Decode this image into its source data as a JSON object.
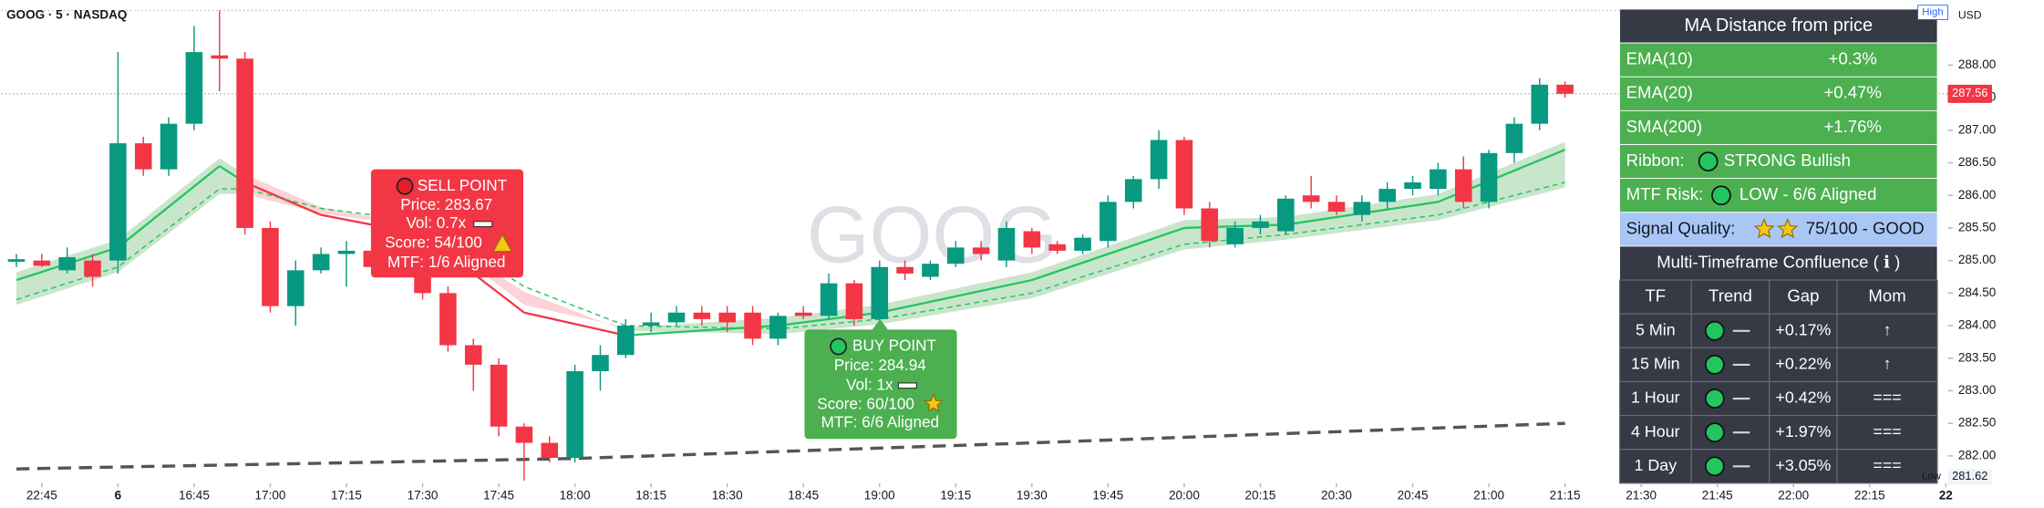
{
  "chart_data": {
    "type": "candlestick",
    "title": "GOOG · 5 · NASDAQ",
    "watermark": "GOOG",
    "currency": "USD",
    "up_color": "#089981",
    "down_color": "#f23645",
    "series": [
      {
        "open": [
          284.98,
          285.0,
          284.85,
          285.0,
          285.0,
          286.8,
          286.4,
          287.1,
          288.15,
          288.1,
          285.5,
          284.3,
          284.85,
          285.1,
          285.15,
          284.9,
          285.0,
          284.5,
          283.7,
          283.4,
          282.45,
          282.2,
          281.97,
          283.3,
          283.55,
          284.0,
          284.05,
          284.2,
          284.2,
          284.2,
          283.8,
          284.2,
          284.15,
          284.65,
          284.1,
          284.9,
          284.75,
          284.95,
          285.2,
          285.0,
          285.45,
          285.25,
          285.15,
          285.3,
          285.9,
          286.25,
          286.85,
          285.8,
          285.25,
          285.5,
          285.45,
          286.0,
          285.9,
          285.7,
          285.9,
          286.1,
          286.1,
          286.4,
          285.9,
          286.65,
          287.1,
          287.7
        ],
        "high": [
          285.1,
          285.1,
          285.2,
          285.1,
          288.2,
          286.9,
          287.2,
          288.6,
          288.84,
          288.2,
          285.6,
          285.0,
          285.2,
          285.3,
          285.3,
          285.1,
          285.1,
          284.6,
          283.8,
          283.5,
          282.5,
          282.3,
          283.4,
          283.7,
          284.1,
          284.2,
          284.3,
          284.3,
          284.3,
          284.3,
          284.2,
          284.3,
          284.8,
          284.7,
          285.0,
          285.0,
          285.0,
          285.3,
          285.3,
          285.6,
          285.5,
          285.3,
          285.4,
          286.0,
          286.3,
          287.0,
          286.9,
          285.9,
          285.6,
          285.7,
          286.0,
          286.3,
          286.0,
          286.0,
          286.2,
          286.3,
          286.5,
          286.6,
          286.7,
          287.2,
          287.8,
          287.75
        ],
        "low": [
          284.9,
          284.9,
          284.8,
          284.6,
          284.8,
          286.3,
          286.3,
          287.0,
          287.6,
          285.4,
          284.2,
          284.0,
          284.8,
          284.6,
          284.8,
          284.8,
          284.4,
          283.6,
          283.0,
          282.3,
          281.62,
          281.9,
          281.9,
          283.0,
          283.5,
          283.9,
          284.0,
          284.0,
          283.9,
          283.7,
          283.7,
          284.1,
          284.1,
          284.0,
          284.0,
          284.7,
          284.7,
          284.9,
          285.0,
          284.9,
          285.1,
          285.1,
          285.1,
          285.2,
          285.8,
          286.1,
          285.7,
          285.2,
          285.2,
          285.4,
          285.4,
          285.8,
          285.7,
          285.6,
          285.8,
          286.0,
          286.0,
          285.8,
          285.8,
          286.5,
          287.0,
          287.5
        ],
        "close": [
          285.02,
          284.92,
          285.05,
          284.75,
          286.8,
          286.4,
          287.1,
          288.2,
          288.1,
          285.5,
          284.3,
          284.85,
          285.1,
          285.15,
          284.9,
          285.0,
          284.5,
          283.7,
          283.4,
          282.45,
          282.2,
          281.97,
          283.3,
          283.55,
          284.0,
          284.05,
          284.2,
          284.1,
          284.05,
          283.8,
          284.15,
          284.15,
          284.65,
          284.1,
          284.9,
          284.8,
          284.95,
          285.2,
          285.1,
          285.5,
          285.2,
          285.15,
          285.35,
          285.9,
          286.25,
          286.85,
          285.8,
          285.3,
          285.5,
          285.6,
          285.95,
          285.9,
          285.75,
          285.9,
          286.1,
          286.2,
          286.4,
          285.9,
          286.65,
          287.1,
          287.7,
          287.56
        ]
      }
    ],
    "ema_fast": {
      "color": "#22c55e",
      "falling_color": "#f23645",
      "x": [
        0,
        4,
        8,
        9,
        12,
        16,
        20,
        24,
        30,
        34,
        40,
        46,
        50,
        56,
        61
      ],
      "values": [
        284.7,
        285.2,
        286.45,
        286.2,
        285.7,
        285.4,
        284.2,
        283.85,
        284.0,
        284.2,
        284.7,
        285.5,
        285.55,
        285.9,
        286.7
      ]
    },
    "ema_slow": {
      "color": "#22c55e",
      "x": [
        0,
        4,
        8,
        9,
        12,
        16,
        20,
        24,
        30,
        34,
        40,
        46,
        50,
        56,
        61
      ],
      "values": [
        284.4,
        284.9,
        286.1,
        286.1,
        285.8,
        285.6,
        284.6,
        284.0,
        283.95,
        284.1,
        284.5,
        285.25,
        285.4,
        285.7,
        286.2
      ]
    },
    "sma200": {
      "color": "#555555",
      "x": [
        0,
        22,
        40,
        61
      ],
      "values": [
        281.8,
        281.96,
        282.2,
        282.5
      ]
    },
    "xlim": [
      -0.6,
      77
    ],
    "xticks": [
      {
        "value": 1,
        "label": "22:45"
      },
      {
        "value": 4,
        "label": "6"
      },
      {
        "value": 7,
        "label": "16:45"
      },
      {
        "value": 10,
        "label": "17:00"
      },
      {
        "value": 13,
        "label": "17:15"
      },
      {
        "value": 16,
        "label": "17:30"
      },
      {
        "value": 19,
        "label": "17:45"
      },
      {
        "value": 22,
        "label": "18:00"
      },
      {
        "value": 25,
        "label": "18:15"
      },
      {
        "value": 28,
        "label": "18:30"
      },
      {
        "value": 31,
        "label": "18:45"
      },
      {
        "value": 34,
        "label": "19:00"
      },
      {
        "value": 37,
        "label": "19:15"
      },
      {
        "value": 40,
        "label": "19:30"
      },
      {
        "value": 43,
        "label": "19:45"
      },
      {
        "value": 46,
        "label": "20:00"
      },
      {
        "value": 49,
        "label": "20:15"
      },
      {
        "value": 52,
        "label": "20:30"
      },
      {
        "value": 55,
        "label": "20:45"
      },
      {
        "value": 58,
        "label": "21:00"
      },
      {
        "value": 61,
        "label": "21:15"
      },
      {
        "value": 64,
        "label": "21:30"
      },
      {
        "value": 67,
        "label": "21:45"
      },
      {
        "value": 70,
        "label": "22:00"
      },
      {
        "value": 73,
        "label": "22:15"
      },
      {
        "value": 76,
        "label": "22"
      }
    ],
    "ylim": [
      281.6,
      289
    ],
    "yticks": [
      {
        "value": 288,
        "label": "288.00"
      },
      {
        "value": 287.5,
        "label": "287.50"
      },
      {
        "value": 287,
        "label": "287.00"
      },
      {
        "value": 286.5,
        "label": "286.50"
      },
      {
        "value": 286,
        "label": "286.00"
      },
      {
        "value": 285.5,
        "label": "285.50"
      },
      {
        "value": 285,
        "label": "285.00"
      },
      {
        "value": 284.5,
        "label": "284.50"
      },
      {
        "value": 284,
        "label": "284.00"
      },
      {
        "value": 283.5,
        "label": "283.50"
      },
      {
        "value": 283,
        "label": "283.00"
      },
      {
        "value": 282.5,
        "label": "282.50"
      },
      {
        "value": 282,
        "label": "282.00"
      }
    ],
    "high_label": "High",
    "low_label": "Low",
    "low_value": 281.62,
    "last_price": 287.56,
    "sell_signal": {
      "title": "SELL POINT",
      "price": "Price: 283.67",
      "vol": "Vol: 0.7x",
      "score": "Score: 54/100",
      "mtf": "MTF: 1/6 Aligned"
    },
    "buy_signal": {
      "title": "BUY POINT",
      "price": "Price: 284.94",
      "vol": "Vol: 1x",
      "score": "Score: 60/100",
      "mtf": "MTF: 6/6 Aligned"
    }
  },
  "panel": {
    "title": "MA Distance from price",
    "rows": [
      {
        "label": "EMA(10)",
        "value": "+0.3%"
      },
      {
        "label": "EMA(20)",
        "value": "+0.47%"
      },
      {
        "label": "SMA(200)",
        "value": "+1.76%"
      }
    ],
    "ribbon": {
      "label": "Ribbon:",
      "value": "STRONG Bullish"
    },
    "mtf_risk": {
      "label": "MTF Risk:",
      "value": "LOW - 6/6 Aligned"
    },
    "signal_quality": {
      "label": "Signal Quality:",
      "value": "75/100 - GOOD"
    },
    "mtf": {
      "title": "Multi-Timeframe Confluence ( ℹ )",
      "columns": [
        "TF",
        "Trend",
        "Gap",
        "Mom"
      ],
      "rows": [
        [
          "5 Min",
          "+0.17%",
          "↑"
        ],
        [
          "15 Min",
          "+0.22%",
          "↑"
        ],
        [
          "1 Hour",
          "+0.42%",
          "==="
        ],
        [
          "4 Hour",
          "+1.97%",
          "==="
        ],
        [
          "1 Day",
          "+3.05%",
          "==="
        ]
      ]
    }
  }
}
